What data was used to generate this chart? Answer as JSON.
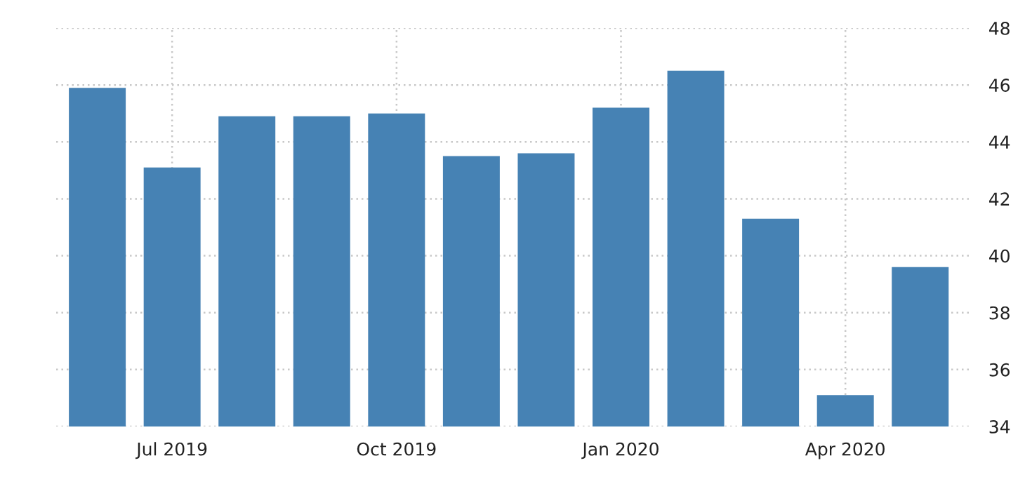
{
  "chart_data": {
    "type": "bar",
    "categories": [
      null,
      "Jul 2019",
      null,
      null,
      "Oct 2019",
      null,
      null,
      "Jan 2020",
      null,
      null,
      "Apr 2020",
      null
    ],
    "values": [
      45.9,
      43.1,
      44.9,
      44.9,
      45.0,
      43.5,
      43.6,
      45.2,
      46.5,
      41.3,
      35.1,
      39.6
    ],
    "color": "#4682b4",
    "ylim": [
      34,
      48
    ],
    "yticks": [
      34,
      36,
      38,
      40,
      42,
      44,
      46,
      48
    ],
    "grid": true
  }
}
